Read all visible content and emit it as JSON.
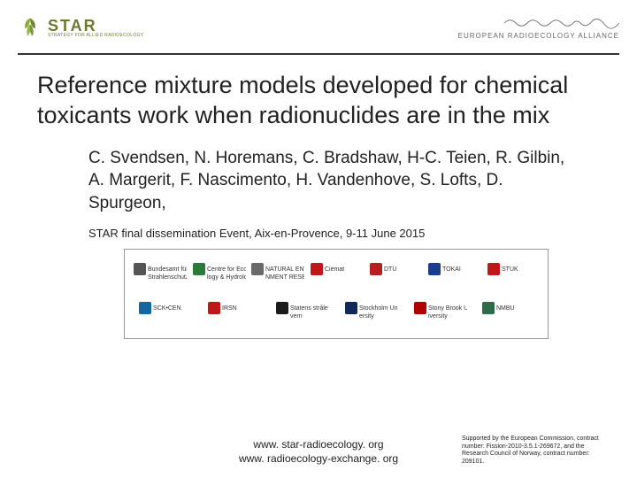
{
  "header": {
    "star_logo_text": "STAR",
    "star_logo_sub": "STRATEGY FOR ALLIED RADIOECOLOGY",
    "star_leaf_color": "#8aa838",
    "era_text": "EUROPEAN RADIOECOLOGY ALLIANCE",
    "era_wave_color": "#777777"
  },
  "title": "Reference mixture models developed for chemical toxicants work when radionuclides are in the mix",
  "authors": "C. Svendsen, N. Horemans, C. Bradshaw, H-C. Teien, R. Gilbin, A. Margerit, F. Nascimento, H. Vandenhove, S. Lofts, D. Spurgeon,",
  "event": "STAR final dissemination Event, Aix-en-Provence, 9-11 June 2015",
  "logos": {
    "row1": [
      {
        "name": "bfs",
        "label": "Bundesamt für Strahlenschutz",
        "color": "#555555"
      },
      {
        "name": "ceh",
        "label": "Centre for Ecology & Hydrology",
        "color": "#2a7a3a"
      },
      {
        "name": "nerc",
        "label": "NATURAL ENVIRONMENT RESEARCH COUNCIL",
        "color": "#6a6a6a"
      },
      {
        "name": "ciemat",
        "label": "Ciemat",
        "color": "#c01818"
      },
      {
        "name": "dtu",
        "label": "DTU",
        "color": "#b51f1f"
      },
      {
        "name": "tokai",
        "label": "TOKAI",
        "color": "#1a3d8f"
      },
      {
        "name": "stuk",
        "label": "STUK",
        "color": "#c01818"
      }
    ],
    "row2": [
      {
        "name": "sck",
        "label": "SCK•CEN",
        "color": "#1565a0"
      },
      {
        "name": "irsn",
        "label": "IRSN",
        "color": "#c01818"
      },
      {
        "name": "statens",
        "label": "Statens strålevern",
        "color": "#1a1a1a"
      },
      {
        "name": "stockholm",
        "label": "Stockholm University",
        "color": "#0f2a5a"
      },
      {
        "name": "stonybrook",
        "label": "Stony Brook University",
        "color": "#b30000"
      },
      {
        "name": "nmbu",
        "label": "NMBU",
        "color": "#2d6b4a"
      }
    ]
  },
  "footer": {
    "url1": "www. star-radioecology. org",
    "url2": "www. radioecology-exchange. org",
    "funding": "Supported by the European Commission, contract number: Fission-2010-3.5.1-269672, and the Research Council of Norway, contract number: 209101."
  },
  "colors": {
    "divider": "#333333",
    "background": "#ffffff",
    "text": "#222222"
  }
}
